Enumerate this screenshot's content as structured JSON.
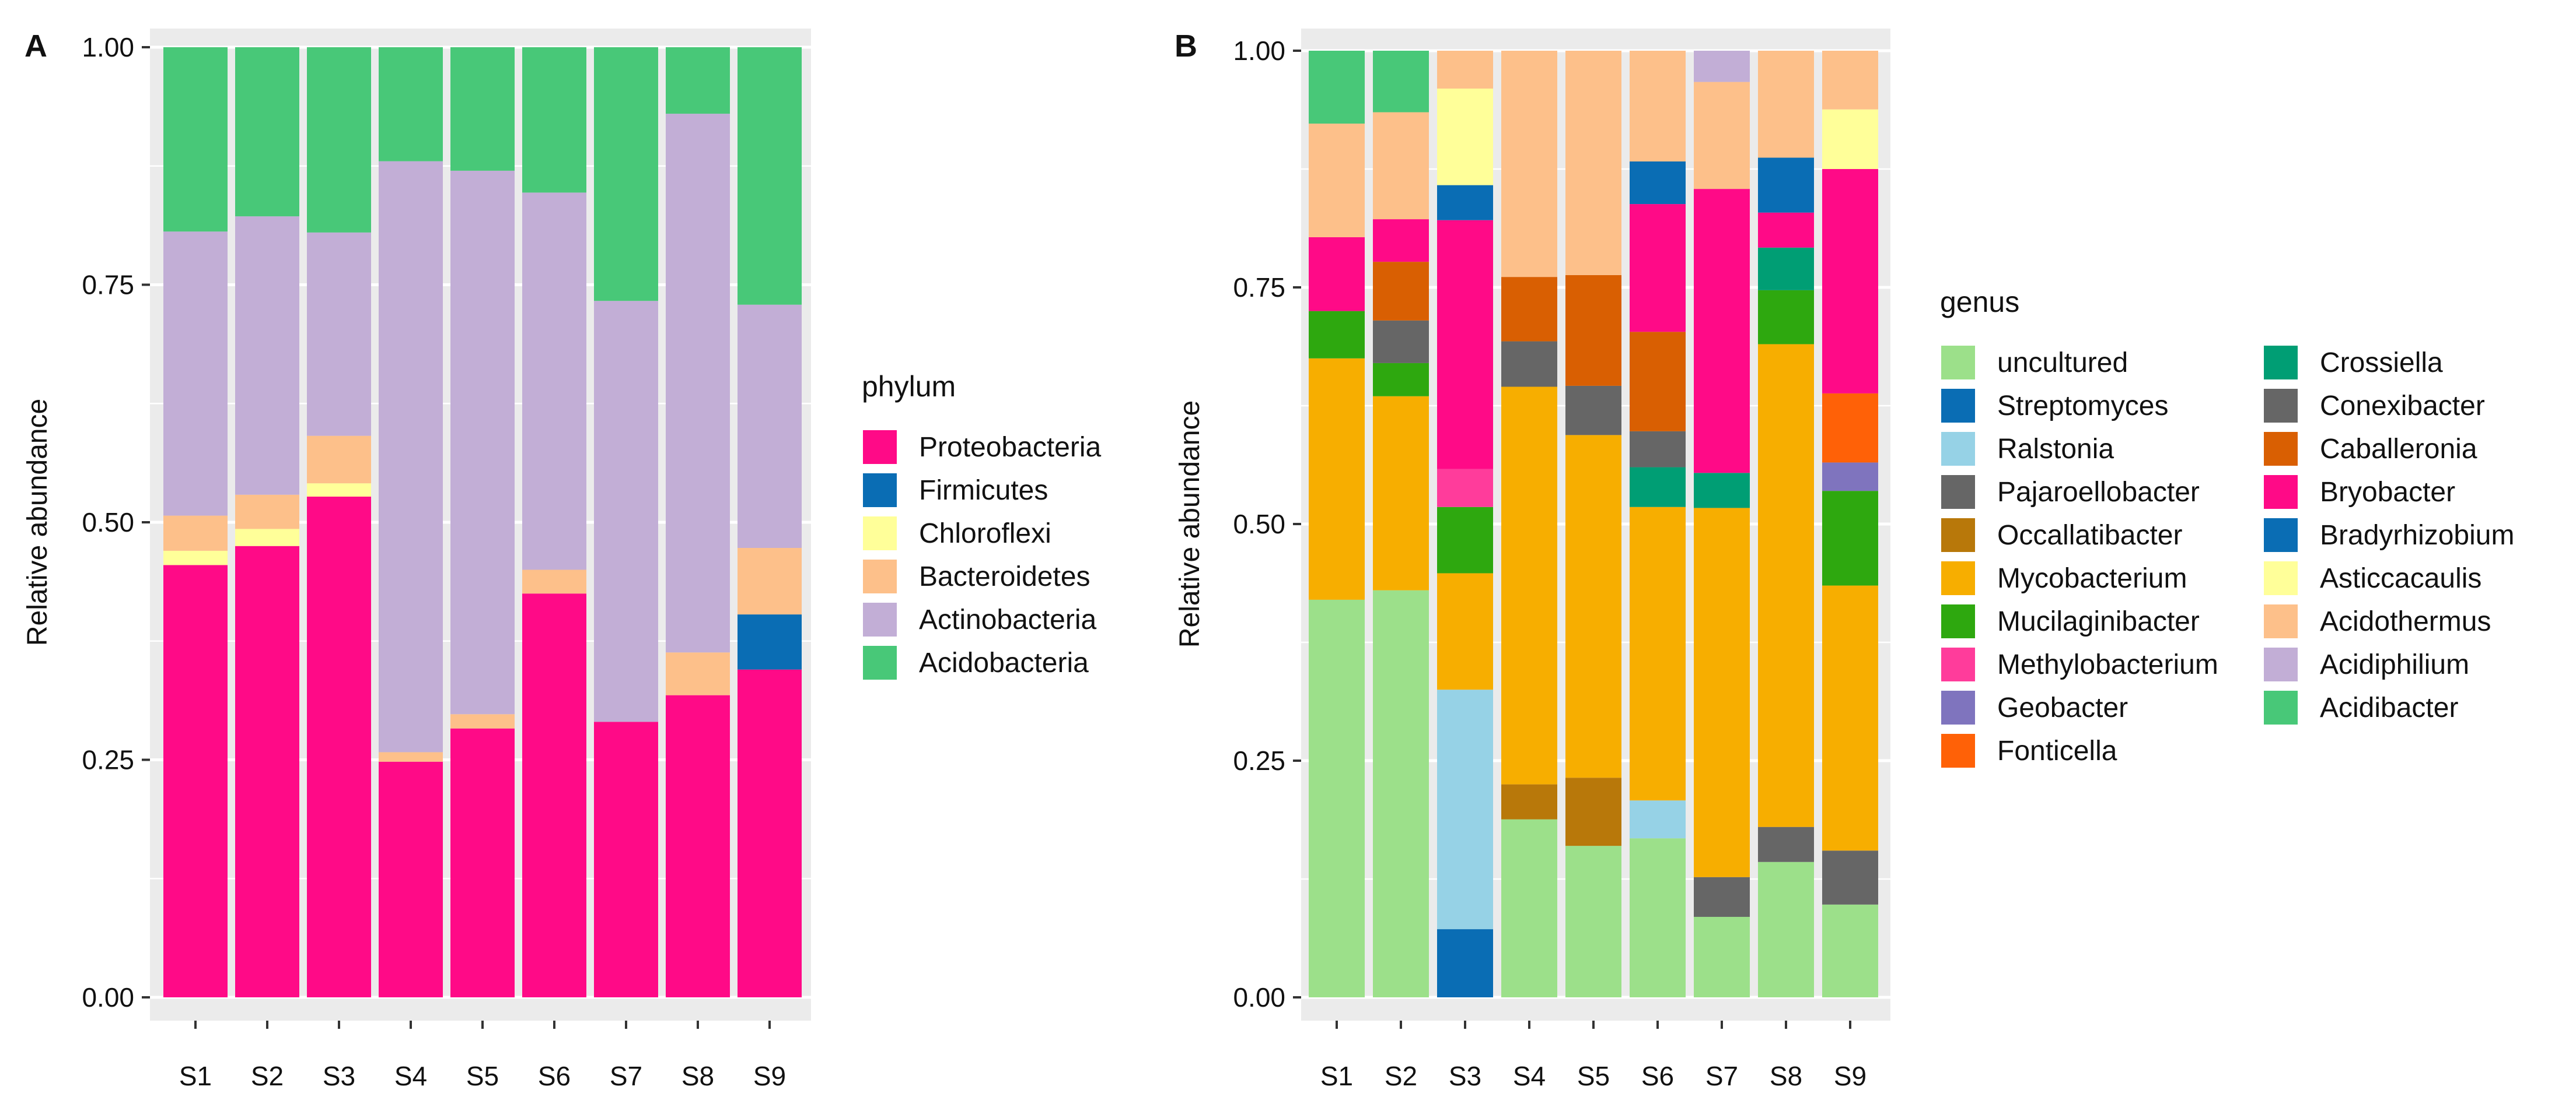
{
  "chart_data": [
    {
      "panel_label": "A",
      "type": "bar",
      "stacked": true,
      "xlabel": "",
      "ylabel": "Relative abundance",
      "ylim": [
        0,
        1
      ],
      "yticks": [
        "0.00",
        "0.25",
        "0.50",
        "0.75",
        "1.00"
      ],
      "categories": [
        "S1",
        "S2",
        "S3",
        "S4",
        "S5",
        "S6",
        "S7",
        "S8",
        "S9"
      ],
      "legend_title": "phylum",
      "legend_columns": 1,
      "legend_placement": "right",
      "series": [
        {
          "name": "Proteobacteria",
          "color": "#FF0A87",
          "values": [
            0.455,
            0.475,
            0.527,
            0.248,
            0.283,
            0.425,
            0.29,
            0.318,
            0.345
          ]
        },
        {
          "name": "Firmicutes",
          "color": "#0A6DB4",
          "values": [
            0,
            0,
            0,
            0,
            0,
            0,
            0,
            0,
            0.058
          ]
        },
        {
          "name": "Chloroflexi",
          "color": "#FFFF99",
          "values": [
            0.015,
            0.018,
            0.014,
            0,
            0,
            0,
            0,
            0,
            0
          ]
        },
        {
          "name": "Bacteroidetes",
          "color": "#FDC08A",
          "values": [
            0.037,
            0.036,
            0.05,
            0.01,
            0.015,
            0.025,
            0,
            0.045,
            0.07
          ]
        },
        {
          "name": "Actinobacteria",
          "color": "#C2AED6",
          "values": [
            0.299,
            0.293,
            0.214,
            0.622,
            0.572,
            0.397,
            0.443,
            0.567,
            0.256
          ]
        },
        {
          "name": "Acidobacteria",
          "color": "#48C878",
          "values": [
            0.194,
            0.178,
            0.195,
            0.12,
            0.13,
            0.153,
            0.267,
            0.07,
            0.271
          ]
        }
      ]
    },
    {
      "panel_label": "B",
      "type": "bar",
      "stacked": true,
      "xlabel": "",
      "ylabel": "Relative abundance",
      "ylim": [
        0,
        1
      ],
      "yticks": [
        "0.00",
        "0.25",
        "0.50",
        "0.75",
        "1.00"
      ],
      "categories": [
        "S1",
        "S2",
        "S3",
        "S4",
        "S5",
        "S6",
        "S7",
        "S8",
        "S9"
      ],
      "legend_title": "genus",
      "legend_columns": 2,
      "legend_placement": "right",
      "series": [
        {
          "name": "uncultured",
          "color": "#9CE08A",
          "values": [
            0.42,
            0.43,
            0,
            0.188,
            0.16,
            0.168,
            0.085,
            0.143,
            0.098
          ]
        },
        {
          "name": "Streptomyces",
          "color": "#0A6DB4",
          "values": [
            0,
            0,
            0.072,
            0,
            0,
            0,
            0,
            0,
            0
          ]
        },
        {
          "name": "Ralstonia",
          "color": "#96D2E6",
          "values": [
            0,
            0,
            0.253,
            0,
            0,
            0.04,
            0,
            0,
            0
          ]
        },
        {
          "name": "Pajaroellobacter",
          "color": "#666666",
          "values": [
            0,
            0,
            0,
            0,
            0,
            0,
            0.042,
            0.037,
            0.057
          ]
        },
        {
          "name": "Occallatibacter",
          "color": "#B8780A",
          "values": [
            0,
            0,
            0,
            0.037,
            0.072,
            0,
            0,
            0,
            0
          ]
        },
        {
          "name": "Mycobacterium",
          "color": "#F7AE00",
          "values": [
            0.255,
            0.205,
            0.123,
            0.42,
            0.362,
            0.31,
            0.39,
            0.51,
            0.28
          ]
        },
        {
          "name": "Mucilaginibacter",
          "color": "#2EA80F",
          "values": [
            0.05,
            0.035,
            0.07,
            0,
            0,
            0,
            0,
            0.057,
            0.1
          ]
        },
        {
          "name": "Methylobacterium",
          "color": "#FF3C9B",
          "values": [
            0,
            0,
            0.04,
            0,
            0,
            0,
            0,
            0,
            0
          ]
        },
        {
          "name": "Geobacter",
          "color": "#7F74BE",
          "values": [
            0,
            0,
            0,
            0,
            0,
            0,
            0,
            0,
            0.03
          ]
        },
        {
          "name": "Fonticella",
          "color": "#FF6107",
          "values": [
            0,
            0,
            0,
            0,
            0,
            0,
            0,
            0,
            0.073
          ]
        },
        {
          "name": "Crossiella",
          "color": "#009E74",
          "values": [
            0,
            0,
            0,
            0,
            0,
            0.042,
            0.037,
            0.045,
            0
          ]
        },
        {
          "name": "Conexibacter",
          "color": "#666666",
          "values": [
            0,
            0.045,
            0,
            0.048,
            0.052,
            0.038,
            0,
            0,
            0
          ]
        },
        {
          "name": "Caballeronia",
          "color": "#D95F02",
          "values": [
            0,
            0.062,
            0,
            0.068,
            0.117,
            0.105,
            0,
            0,
            0
          ]
        },
        {
          "name": "Bryobacter",
          "color": "#FF0A87",
          "values": [
            0.078,
            0.045,
            0.263,
            0,
            0,
            0.135,
            0.3,
            0.037,
            0.237
          ]
        },
        {
          "name": "Bradyrhizobium",
          "color": "#0A6DB4",
          "values": [
            0,
            0,
            0.037,
            0,
            0,
            0.045,
            0,
            0.058,
            0
          ]
        },
        {
          "name": "Asticcacaulis",
          "color": "#FFFF99",
          "values": [
            0,
            0,
            0.102,
            0,
            0,
            0,
            0,
            0,
            0.063
          ]
        },
        {
          "name": "Acidothermus",
          "color": "#FDC08A",
          "values": [
            0.12,
            0.113,
            0.04,
            0.239,
            0.237,
            0.117,
            0.113,
            0.113,
            0.062
          ]
        },
        {
          "name": "Acidiphilium",
          "color": "#C2AED6",
          "values": [
            0,
            0,
            0,
            0,
            0,
            0,
            0.033,
            0,
            0
          ]
        },
        {
          "name": "Acidibacter",
          "color": "#48C878",
          "values": [
            0.077,
            0.065,
            0,
            0,
            0,
            0,
            0,
            0,
            0
          ]
        }
      ]
    }
  ]
}
